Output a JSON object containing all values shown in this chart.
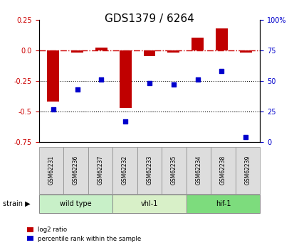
{
  "title": "GDS1379 / 6264",
  "samples": [
    "GSM62231",
    "GSM62236",
    "GSM62237",
    "GSM62232",
    "GSM62233",
    "GSM62235",
    "GSM62234",
    "GSM62238",
    "GSM62239"
  ],
  "log2_ratio": [
    -0.42,
    -0.02,
    0.02,
    -0.47,
    -0.05,
    -0.02,
    0.1,
    0.18,
    -0.02
  ],
  "percentile_rank": [
    27,
    43,
    51,
    17,
    48,
    47,
    51,
    58,
    4
  ],
  "groups": [
    {
      "label": "wild type",
      "indices": [
        0,
        1,
        2
      ],
      "color": "#c8f0c8"
    },
    {
      "label": "vhl-1",
      "indices": [
        3,
        4,
        5
      ],
      "color": "#d8f0c8"
    },
    {
      "label": "hif-1",
      "indices": [
        6,
        7,
        8
      ],
      "color": "#7ddc7d"
    }
  ],
  "ylim_left": [
    -0.75,
    0.25
  ],
  "ylim_right": [
    0,
    100
  ],
  "yticks_left": [
    -0.75,
    -0.5,
    -0.25,
    0.0,
    0.25
  ],
  "yticks_right": [
    0,
    25,
    50,
    75,
    100
  ],
  "bar_color": "#c00000",
  "scatter_color": "#0000cc",
  "hline_color": "#cc0000",
  "dotted_line_color": "#000000",
  "bg_color": "#ffffff",
  "plot_bg": "#ffffff",
  "left_tick_color": "#cc0000",
  "right_tick_color": "#0000cc",
  "title_fontsize": 11,
  "tick_fontsize": 7,
  "label_fontsize": 7.5,
  "sample_box_color": "#dddddd",
  "sample_box_edge": "#888888"
}
